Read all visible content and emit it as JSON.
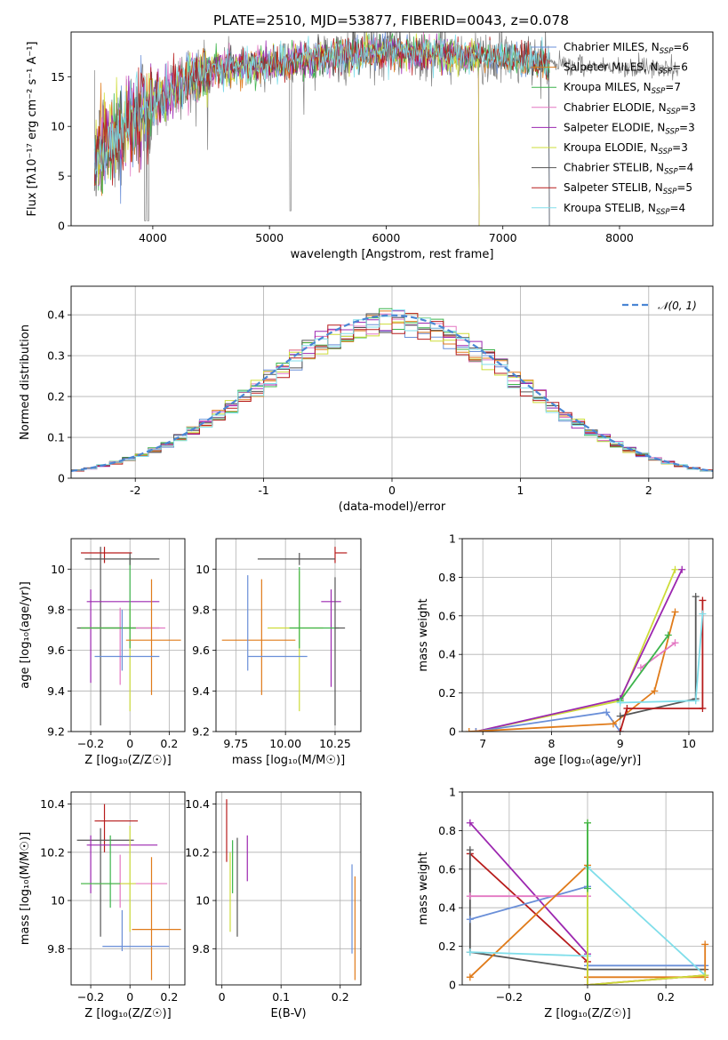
{
  "figure_title": "PLATE=2510, MJD=53877, FIBERID=0043, z=0.078",
  "chart_data": [
    {
      "id": "spectrum",
      "type": "line",
      "xlabel": "wavelength [Angstrom, rest frame]",
      "ylabel": "Flux [fλ10⁻¹⁷ erg cm⁻² s⁻¹ A⁻¹]",
      "xlim": [
        3300,
        8800
      ],
      "ylim": [
        0,
        19.5
      ],
      "xticks": [
        4000,
        5000,
        6000,
        7000,
        8000
      ],
      "yticks": [
        0,
        5,
        10,
        15
      ],
      "data_shape": {
        "knots_x": [
          3500,
          3700,
          4000,
          4300,
          4600,
          5000,
          5500,
          6000,
          6500,
          7000,
          7400
        ],
        "knots_y": [
          7,
          9.5,
          12.5,
          14.6,
          16,
          16.3,
          17,
          17.5,
          17.3,
          16.8,
          16.5
        ]
      },
      "legend_position": "upper-right",
      "series": [
        {
          "name": "Chabrier MILES, N",
          "sub": "SSP",
          "suffix": "=6",
          "color": "#6a8fd8",
          "x_end": 7400
        },
        {
          "name": "Salpeter MILES, N",
          "sub": "SSP",
          "suffix": "=6",
          "color": "#e07b1a",
          "x_end": 7400
        },
        {
          "name": "Kroupa MILES, N",
          "sub": "SSP",
          "suffix": "=7",
          "color": "#3cb44b",
          "x_end": 7400
        },
        {
          "name": "Chabrier ELODIE, N",
          "sub": "SSP",
          "suffix": "=3",
          "color": "#e377c2",
          "x_end": 6800
        },
        {
          "name": "Salpeter ELODIE, N",
          "sub": "SSP",
          "suffix": "=3",
          "color": "#9c27b0",
          "x_end": 6800
        },
        {
          "name": "Kroupa ELODIE, N",
          "sub": "SSP",
          "suffix": "=3",
          "color": "#cddc39",
          "x_end": 6800
        },
        {
          "name": "Chabrier STELIB, N",
          "sub": "SSP",
          "suffix": "=4",
          "color": "#555555",
          "x_end": 7400
        },
        {
          "name": "Salpeter STELIB, N",
          "sub": "SSP",
          "suffix": "=5",
          "color": "#b71c1c",
          "x_end": 7400
        },
        {
          "name": "Kroupa STELIB, N",
          "sub": "SSP",
          "suffix": "=4",
          "color": "#80deea",
          "x_end": 7400
        }
      ],
      "observed_color": "#808080",
      "observed_x_end": 8500
    },
    {
      "id": "residuals",
      "type": "histogram",
      "xlabel": "(data-model)/error",
      "ylabel": "Normed distribution",
      "xlim": [
        -2.5,
        2.5
      ],
      "ylim": [
        0,
        0.47
      ],
      "xticks": [
        -2,
        -1,
        0,
        1,
        2
      ],
      "yticks": [
        0,
        0.1,
        0.2,
        0.3,
        0.4
      ],
      "grid": true,
      "bin_width": 0.1,
      "legend_position": "upper-right",
      "reference": {
        "name": "𝒩(0, 1)",
        "color": "#4a86d4",
        "style": "dashed"
      }
    },
    {
      "id": "age-vs-Z",
      "type": "scatter",
      "xlabel": "Z [log₁₀(Z/Z☉)]",
      "ylabel": "age  [log₁₀(age/yr)]",
      "xlim": [
        -0.3,
        0.28
      ],
      "ylim": [
        9.2,
        10.15
      ],
      "xticks": [
        -0.2,
        0.0,
        0.2
      ],
      "yticks": [
        9.2,
        9.4,
        9.6,
        9.8,
        10.0
      ],
      "grid": true,
      "points": [
        {
          "x": -0.15,
          "x_err": [
            0.12,
            0.3
          ],
          "y": 9.71,
          "y_err": [
            0.48,
            0.4
          ],
          "color": "#555555"
        },
        {
          "x": -0.13,
          "x_err": [
            0.12,
            0.14
          ],
          "y": 10.08,
          "y_err": [
            0.05,
            0.03
          ],
          "color": "#b71c1c"
        },
        {
          "x": -0.2,
          "x_err": [
            0.02,
            0.35
          ],
          "y": 9.84,
          "y_err": [
            0.4,
            0.06
          ],
          "color": "#9c27b0"
        },
        {
          "x": -0.05,
          "x_err": [
            0.2,
            0.23
          ],
          "y": 9.71,
          "y_err": [
            0.28,
            0.1
          ],
          "color": "#e377c2"
        },
        {
          "x": 0.0,
          "x_err": [
            0.25,
            0.03
          ],
          "y": 9.71,
          "y_err": [
            0.41,
            0.12
          ],
          "color": "#cddc39"
        },
        {
          "x": 0.0,
          "x_err": [
            0.25,
            0.03
          ],
          "y": 9.71,
          "y_err": [
            0.1,
            0.35
          ],
          "color": "#3cb44b"
        },
        {
          "x": 0.11,
          "x_err": [
            0.13,
            0.15
          ],
          "y": 9.65,
          "y_err": [
            0.27,
            0.3
          ],
          "color": "#e07b1a"
        },
        {
          "x": -0.04,
          "x_err": [
            0.14,
            0.19
          ],
          "y": 9.57,
          "y_err": [
            0.07,
            0.23
          ],
          "color": "#6a8fd8"
        },
        {
          "x": 0.0,
          "x_err": [
            0.23,
            0.15
          ],
          "y": 10.05,
          "y_err": [
            0.03,
            0.03
          ],
          "color": "#555555"
        }
      ]
    },
    {
      "id": "age-vs-mass",
      "type": "scatter",
      "xlabel": "mass [log₁₀(M/M☉)]",
      "ylabel": "",
      "xlim": [
        9.65,
        10.38
      ],
      "ylim": [
        9.2,
        10.15
      ],
      "xticks": [
        9.75,
        10.0,
        10.25
      ],
      "xtick_labels": [
        "9.75",
        "10.00",
        "10.25"
      ],
      "yticks": [
        9.2,
        9.4,
        9.6,
        9.8,
        10.0
      ],
      "grid": true,
      "points": [
        {
          "x": 10.25,
          "x_err": [
            0.0,
            0.06
          ],
          "y": 10.08,
          "y_err": [
            0.05,
            0.03
          ],
          "color": "#b71c1c"
        },
        {
          "x": 10.07,
          "x_err": [
            0.21,
            0.18
          ],
          "y": 10.05,
          "y_err": [
            0.03,
            0.03
          ],
          "color": "#555555"
        },
        {
          "x": 10.23,
          "x_err": [
            0.05,
            0.05
          ],
          "y": 9.84,
          "y_err": [
            0.42,
            0.06
          ],
          "color": "#9c27b0"
        },
        {
          "x": 10.07,
          "x_err": [
            0.16,
            0.12
          ],
          "y": 9.71,
          "y_err": [
            0.41,
            0.28
          ],
          "color": "#cddc39"
        },
        {
          "x": 10.07,
          "x_err": [
            0.05,
            0.2
          ],
          "y": 9.71,
          "y_err": [
            0.1,
            0.3
          ],
          "color": "#3cb44b"
        },
        {
          "x": 9.88,
          "x_err": [
            0.2,
            0.17
          ],
          "y": 9.65,
          "y_err": [
            0.27,
            0.3
          ],
          "color": "#e07b1a"
        },
        {
          "x": 9.81,
          "x_err": [
            0.0,
            0.3
          ],
          "y": 9.57,
          "y_err": [
            0.07,
            0.4
          ],
          "color": "#6a8fd8"
        },
        {
          "x": 10.25,
          "x_err": [
            0.0,
            0.05
          ],
          "y": 9.71,
          "y_err": [
            0.48,
            0.25
          ],
          "color": "#555555"
        }
      ]
    },
    {
      "id": "weight-vs-age",
      "type": "line",
      "xlabel": "age  [log₁₀(age/yr)]",
      "ylabel": "mass weight",
      "xlim": [
        6.7,
        10.35
      ],
      "ylim": [
        0,
        1
      ],
      "xticks": [
        7,
        8,
        9,
        10
      ],
      "yticks": [
        0.0,
        0.2,
        0.4,
        0.6,
        0.8,
        1.0
      ],
      "grid": true,
      "series": [
        {
          "color": "#cddc39",
          "x": [
            6.9,
            9.0,
            9.8
          ],
          "y": [
            0.0,
            0.16,
            0.84
          ]
        },
        {
          "color": "#9c27b0",
          "x": [
            6.9,
            9.0,
            9.9
          ],
          "y": [
            0.0,
            0.17,
            0.84
          ]
        },
        {
          "color": "#6a8fd8",
          "x": [
            6.9,
            8.8,
            9.0
          ],
          "y": [
            0.0,
            0.1,
            0.0
          ]
        },
        {
          "color": "#e07b1a",
          "x": [
            6.8,
            8.9,
            9.5,
            9.8
          ],
          "y": [
            0.0,
            0.04,
            0.21,
            0.62
          ]
        },
        {
          "color": "#e377c2",
          "x": [
            9.3,
            9.8
          ],
          "y": [
            0.33,
            0.46
          ]
        },
        {
          "color": "#3cb44b",
          "x": [
            9.0,
            9.7
          ],
          "y": [
            0.16,
            0.5
          ]
        },
        {
          "color": "#555555",
          "x": [
            9.0,
            10.1,
            10.1
          ],
          "y": [
            0.08,
            0.17,
            0.7
          ]
        },
        {
          "color": "#b71c1c",
          "x": [
            9.0,
            9.1,
            10.2,
            10.2
          ],
          "y": [
            0.0,
            0.12,
            0.12,
            0.68
          ]
        },
        {
          "color": "#80deea",
          "x": [
            9.0,
            10.1,
            10.2
          ],
          "y": [
            0.15,
            0.16,
            0.61
          ]
        }
      ]
    },
    {
      "id": "mass-vs-Z",
      "type": "scatter",
      "xlabel": "Z [log₁₀(Z/Z☉)]",
      "ylabel": "mass [log₁₀(M/M☉)]",
      "xlim": [
        -0.3,
        0.28
      ],
      "ylim": [
        9.65,
        10.45
      ],
      "xticks": [
        -0.2,
        0.0,
        0.2
      ],
      "yticks": [
        9.8,
        10.0,
        10.2,
        10.4
      ],
      "grid": true,
      "points": [
        {
          "x": -0.13,
          "x_err": [
            0.05,
            0.17
          ],
          "y": 10.33,
          "y_err": [
            0.13,
            0.07
          ],
          "color": "#b71c1c"
        },
        {
          "x": -0.15,
          "x_err": [
            0.12,
            0.17
          ],
          "y": 10.25,
          "y_err": [
            0.4,
            0.05
          ],
          "color": "#555555"
        },
        {
          "x": -0.2,
          "x_err": [
            0.02,
            0.34
          ],
          "y": 10.23,
          "y_err": [
            0.2,
            0.04
          ],
          "color": "#9c27b0"
        },
        {
          "x": -0.05,
          "x_err": [
            0.13,
            0.24
          ],
          "y": 10.07,
          "y_err": [
            0.1,
            0.12
          ],
          "color": "#e377c2"
        },
        {
          "x": 0.0,
          "x_err": [
            0.25,
            0.03
          ],
          "y": 10.07,
          "y_err": [
            0.2,
            0.24
          ],
          "color": "#cddc39"
        },
        {
          "x": -0.1,
          "x_err": [
            0.15,
            0.05
          ],
          "y": 10.07,
          "y_err": [
            0.1,
            0.2
          ],
          "color": "#3cb44b"
        },
        {
          "x": 0.11,
          "x_err": [
            0.1,
            0.15
          ],
          "y": 9.88,
          "y_err": [
            0.21,
            0.3
          ],
          "color": "#e07b1a"
        },
        {
          "x": -0.04,
          "x_err": [
            0.1,
            0.24
          ],
          "y": 9.81,
          "y_err": [
            0.02,
            0.15
          ],
          "color": "#6a8fd8"
        }
      ]
    },
    {
      "id": "mass-vs-EBV",
      "type": "scatter",
      "xlabel": "E(B-V)",
      "ylabel": "",
      "xlim": [
        -0.01,
        0.235
      ],
      "ylim": [
        9.65,
        10.45
      ],
      "xticks": [
        0.0,
        0.1,
        0.2
      ],
      "yticks": [
        9.8,
        10.0,
        10.2,
        10.4
      ],
      "grid": true,
      "vlines": [
        {
          "x": 0.008,
          "y": [
            10.16,
            10.42
          ],
          "color": "#b71c1c"
        },
        {
          "x": 0.014,
          "y": [
            9.87,
            10.2
          ],
          "color": "#cddc39"
        },
        {
          "x": 0.018,
          "y": [
            10.03,
            10.25
          ],
          "color": "#3cb44b"
        },
        {
          "x": 0.026,
          "y": [
            9.85,
            10.26
          ],
          "color": "#555555"
        },
        {
          "x": 0.043,
          "y": [
            10.08,
            10.27
          ],
          "color": "#9c27b0"
        },
        {
          "x": 0.22,
          "y": [
            9.78,
            10.15
          ],
          "color": "#6a8fd8"
        },
        {
          "x": 0.225,
          "y": [
            9.67,
            10.1
          ],
          "color": "#e07b1a"
        }
      ]
    },
    {
      "id": "weight-vs-Z",
      "type": "line",
      "xlabel": "Z [log₁₀(Z/Z☉)]",
      "ylabel": "mass weight",
      "xlim": [
        -0.32,
        0.32
      ],
      "ylim": [
        0,
        1
      ],
      "xticks": [
        -0.2,
        0.0,
        0.2
      ],
      "yticks": [
        0.0,
        0.2,
        0.4,
        0.6,
        0.8,
        1.0
      ],
      "grid": true,
      "series": [
        {
          "color": "#9c27b0",
          "x": [
            -0.3,
            0.0,
            0.0
          ],
          "y": [
            0.84,
            0.16,
            0.0
          ]
        },
        {
          "color": "#b71c1c",
          "x": [
            -0.3,
            0.0,
            0.0,
            0.3
          ],
          "y": [
            0.68,
            0.12,
            0.0,
            0.05
          ]
        },
        {
          "color": "#555555",
          "x": [
            -0.3,
            -0.3,
            0.0,
            0.3
          ],
          "y": [
            0.7,
            0.17,
            0.08,
            0.08
          ]
        },
        {
          "color": "#6a8fd8",
          "x": [
            -0.3,
            0.0,
            0.0,
            0.3
          ],
          "y": [
            0.34,
            0.51,
            0.1,
            0.1
          ]
        },
        {
          "color": "#e377c2",
          "x": [
            -0.3,
            0.0
          ],
          "y": [
            0.46,
            0.46
          ]
        },
        {
          "color": "#e07b1a",
          "x": [
            -0.3,
            0.0,
            0.0,
            0.3,
            0.3
          ],
          "y": [
            0.04,
            0.62,
            0.04,
            0.04,
            0.21
          ]
        },
        {
          "color": "#80deea",
          "x": [
            -0.3,
            0.0,
            0.0,
            0.3
          ],
          "y": [
            0.17,
            0.15,
            0.61,
            0.05
          ]
        },
        {
          "color": "#cddc39",
          "x": [
            0.0,
            0.0,
            0.3
          ],
          "y": [
            0.84,
            0.0,
            0.05
          ]
        },
        {
          "color": "#3cb44b",
          "x": [
            0.0,
            0.0
          ],
          "y": [
            0.5,
            0.84
          ]
        }
      ]
    }
  ]
}
